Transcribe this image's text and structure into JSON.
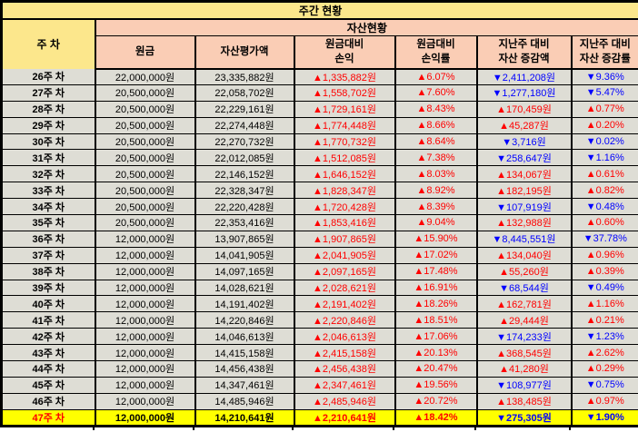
{
  "colors": {
    "title_bg": "#fce78c",
    "header_bg": "#facdb5",
    "row_bg": "#deddd5",
    "highlight_bg": "#ffff00",
    "up": "#ff0000",
    "down": "#0000ff",
    "border": "#000000"
  },
  "chart_data": {
    "type": "table",
    "title": "주간 현황",
    "group_header": "자산현황",
    "columns": [
      "주 차",
      "원금",
      "자산평가액",
      "원금대비\n손익",
      "원금대비\n손익률",
      "지난주 대비\n자산 증감액",
      "지난주 대비\n자산 증감률"
    ],
    "highlight_row_index": 21,
    "rows": [
      [
        "26주 차",
        "22,000,000원",
        "23,335,882원",
        "▲1,335,882원",
        "▲6.07%",
        "▼2,411,208원",
        "▼9.36%"
      ],
      [
        "27주 차",
        "20,500,000원",
        "22,058,702원",
        "▲1,558,702원",
        "▲7.60%",
        "▼1,277,180원",
        "▼5.47%"
      ],
      [
        "28주 차",
        "20,500,000원",
        "22,229,161원",
        "▲1,729,161원",
        "▲8.43%",
        "▲170,459원",
        "▲0.77%"
      ],
      [
        "29주 차",
        "20,500,000원",
        "22,274,448원",
        "▲1,774,448원",
        "▲8.66%",
        "▲45,287원",
        "▲0.20%"
      ],
      [
        "30주 차",
        "20,500,000원",
        "22,270,732원",
        "▲1,770,732원",
        "▲8.64%",
        "▼3,716원",
        "▼0.02%"
      ],
      [
        "31주 차",
        "20,500,000원",
        "22,012,085원",
        "▲1,512,085원",
        "▲7.38%",
        "▼258,647원",
        "▼1.16%"
      ],
      [
        "32주 차",
        "20,500,000원",
        "22,146,152원",
        "▲1,646,152원",
        "▲8.03%",
        "▲134,067원",
        "▲0.61%"
      ],
      [
        "33주 차",
        "20,500,000원",
        "22,328,347원",
        "▲1,828,347원",
        "▲8.92%",
        "▲182,195원",
        "▲0.82%"
      ],
      [
        "34주 차",
        "20,500,000원",
        "22,220,428원",
        "▲1,720,428원",
        "▲8.39%",
        "▼107,919원",
        "▼0.48%"
      ],
      [
        "35주 차",
        "20,500,000원",
        "22,353,416원",
        "▲1,853,416원",
        "▲9.04%",
        "▲132,988원",
        "▲0.60%"
      ],
      [
        "36주 차",
        "12,000,000원",
        "13,907,865원",
        "▲1,907,865원",
        "▲15.90%",
        "▼8,445,551원",
        "▼37.78%"
      ],
      [
        "37주 차",
        "12,000,000원",
        "14,041,905원",
        "▲2,041,905원",
        "▲17.02%",
        "▲134,040원",
        "▲0.96%"
      ],
      [
        "38주 차",
        "12,000,000원",
        "14,097,165원",
        "▲2,097,165원",
        "▲17.48%",
        "▲55,260원",
        "▲0.39%"
      ],
      [
        "39주 차",
        "12,000,000원",
        "14,028,621원",
        "▲2,028,621원",
        "▲16.91%",
        "▼68,544원",
        "▼0.49%"
      ],
      [
        "40주 차",
        "12,000,000원",
        "14,191,402원",
        "▲2,191,402원",
        "▲18.26%",
        "▲162,781원",
        "▲1.16%"
      ],
      [
        "41주 차",
        "12,000,000원",
        "14,220,846원",
        "▲2,220,846원",
        "▲18.51%",
        "▲29,444원",
        "▲0.21%"
      ],
      [
        "42주 차",
        "12,000,000원",
        "14,046,613원",
        "▲2,046,613원",
        "▲17.06%",
        "▼174,233원",
        "▼1.23%"
      ],
      [
        "43주 차",
        "12,000,000원",
        "14,415,158원",
        "▲2,415,158원",
        "▲20.13%",
        "▲368,545원",
        "▲2.62%"
      ],
      [
        "44주 차",
        "12,000,000원",
        "14,456,438원",
        "▲2,456,438원",
        "▲20.47%",
        "▲41,280원",
        "▲0.29%"
      ],
      [
        "45주 차",
        "12,000,000원",
        "14,347,461원",
        "▲2,347,461원",
        "▲19.56%",
        "▼108,977원",
        "▼0.75%"
      ],
      [
        "46주 차",
        "12,000,000원",
        "14,485,946원",
        "▲2,485,946원",
        "▲20.72%",
        "▲138,485원",
        "▲0.97%"
      ],
      [
        "47주 차",
        "12,000,000원",
        "14,210,641원",
        "▲2,210,641원",
        "▲18.42%",
        "▼275,305원",
        "▼1.90%"
      ]
    ]
  }
}
